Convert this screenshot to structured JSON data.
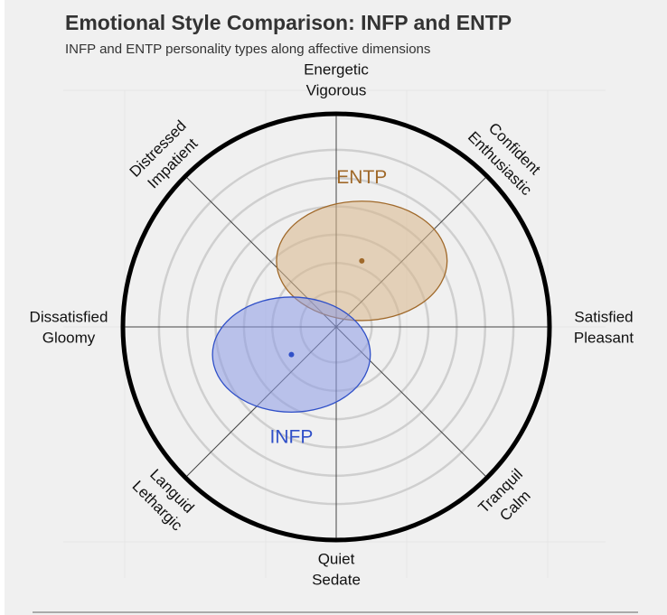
{
  "chart_data": {
    "type": "radar-ellipse",
    "title": "Emotional Style Comparison: INFP and ENTP",
    "subtitle": "INFP and ENTP personality types along affective dimensions",
    "axes": [
      {
        "angle_deg": 90,
        "label": [
          "Energetic",
          "Vigorous"
        ]
      },
      {
        "angle_deg": 45,
        "label": [
          "Confident",
          "Enthusiastic"
        ]
      },
      {
        "angle_deg": 0,
        "label": [
          "Satisfied",
          "Pleasant"
        ]
      },
      {
        "angle_deg": -45,
        "label": [
          "Tranquil",
          "Calm"
        ]
      },
      {
        "angle_deg": -90,
        "label": [
          "Quiet",
          "Sedate"
        ]
      },
      {
        "angle_deg": -135,
        "label": [
          "Languid",
          "Lethargic"
        ]
      },
      {
        "angle_deg": 180,
        "label": [
          "Dissatisfied",
          "Gloomy"
        ]
      },
      {
        "angle_deg": 135,
        "label": [
          "Distressed",
          "Impatient"
        ]
      }
    ],
    "rings": 6,
    "range": [
      -1,
      1
    ],
    "series": [
      {
        "name": "ENTP",
        "center": [
          0.12,
          0.31
        ],
        "radii": [
          0.4,
          0.28
        ],
        "color": "#a0692a",
        "fill": "#d8b68a"
      },
      {
        "name": "INFP",
        "center": [
          -0.21,
          -0.13
        ],
        "radii": [
          0.37,
          0.27
        ],
        "color": "#3050c8",
        "fill": "#8c9be6"
      }
    ]
  }
}
